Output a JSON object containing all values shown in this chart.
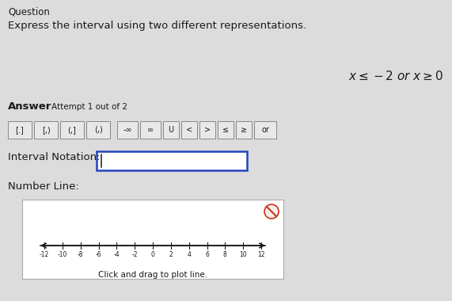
{
  "bg_color": "#dcdcdc",
  "white": "#ffffff",
  "question_text": "Question",
  "express_text": "Express the interval using two different representations.",
  "math_text": "$x \\leq -2$ or $x \\geq 0$",
  "answer_text": "Answer",
  "attempt_text": "Attempt 1 out of 2",
  "buttons": [
    "[.]",
    "[,)",
    "(,]",
    "(,)",
    "-∞",
    "∞",
    "U",
    "<",
    ">",
    "≤",
    "≥",
    "or"
  ],
  "interval_label": "Interval Notation:",
  "numberline_label": "Number Line:",
  "click_drag_text": "Click and drag to plot line.",
  "axis_ticks": [
    -12,
    -10,
    -8,
    -6,
    -4,
    -2,
    0,
    2,
    4,
    6,
    8,
    10,
    12
  ],
  "box_border_color": "#2244bb",
  "numberline_border_color": "#aaaaaa",
  "text_color": "#1a1a1a",
  "button_bg": "#e8e8e8",
  "button_border": "#888888",
  "cancel_color": "#cc3311",
  "cancel_bg": "#f8eeee"
}
